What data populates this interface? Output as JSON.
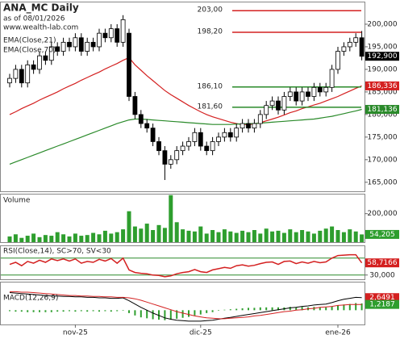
{
  "chart_data": [
    {
      "type": "candlestick",
      "title": "ANA_MC Daily",
      "subtitle": "as of 08/01/2026",
      "source": "www.wealth-lab.com",
      "categories": [
        null,
        null,
        null,
        null,
        null,
        null,
        null,
        null,
        null,
        null,
        null,
        "nov-25",
        null,
        null,
        null,
        null,
        null,
        null,
        null,
        null,
        null,
        null,
        null,
        null,
        null,
        null,
        null,
        null,
        null,
        null,
        null,
        null,
        "dic-25",
        null,
        null,
        null,
        null,
        null,
        null,
        null,
        null,
        null,
        null,
        null,
        null,
        null,
        null,
        null,
        null,
        null,
        null,
        null,
        null,
        null,
        null,
        "ene-26",
        null,
        null,
        null,
        null
      ],
      "open": [
        187,
        188,
        190,
        187,
        191,
        190,
        193,
        192,
        195,
        194,
        196,
        195,
        197,
        194,
        196,
        195,
        198,
        197,
        199,
        196,
        198,
        184,
        180,
        178,
        177,
        174,
        172,
        169,
        170,
        172,
        173,
        174,
        176,
        173,
        172,
        174,
        175,
        176,
        175,
        177,
        178,
        177,
        178,
        180,
        182,
        183,
        181,
        184,
        185,
        183,
        185,
        184,
        186,
        185,
        186,
        190,
        194,
        195,
        196,
        197
      ],
      "high": [
        189,
        191,
        191,
        192,
        192,
        194,
        194,
        196,
        196,
        197,
        197,
        198,
        198,
        197,
        197,
        199,
        199,
        200,
        200,
        202,
        199,
        185,
        181,
        179,
        178,
        175,
        173,
        171,
        173,
        174,
        175,
        177,
        177,
        174,
        175,
        176,
        177,
        177,
        178,
        179,
        179,
        179,
        181,
        183,
        184,
        184,
        185,
        186,
        186,
        186,
        186,
        187,
        187,
        187,
        191,
        195,
        196,
        197,
        198,
        198.5
      ],
      "low": [
        186,
        187,
        186,
        186,
        189,
        189,
        191,
        191,
        193,
        193,
        194,
        194,
        193,
        193,
        194,
        194,
        196,
        196,
        195,
        195,
        183,
        179,
        177,
        176,
        173,
        171,
        165.5,
        168,
        169,
        171,
        172,
        173,
        172,
        171,
        171,
        173,
        174,
        174,
        174,
        176,
        176,
        176,
        177,
        179,
        181,
        180,
        180,
        183,
        182,
        182,
        183,
        183,
        184,
        184,
        185,
        189,
        193,
        194,
        195,
        192
      ],
      "close": [
        188,
        190,
        187,
        191,
        190,
        193,
        192,
        195,
        194,
        196,
        195,
        197,
        194,
        196,
        195,
        198,
        197,
        199,
        196,
        201,
        184,
        180,
        178,
        177,
        174,
        172,
        169,
        170,
        172,
        173,
        174,
        176,
        173,
        172,
        174,
        175,
        176,
        175,
        177,
        178,
        177,
        178,
        180,
        182,
        183,
        181,
        184,
        185,
        183,
        185,
        184,
        186,
        185,
        186,
        190,
        194,
        195,
        196,
        197,
        192.9
      ],
      "series": [
        {
          "name": "EMA(Close,21)",
          "color": "#d42020",
          "values": [
            180.0,
            180.6,
            181.3,
            181.9,
            182.5,
            183.2,
            183.8,
            184.4,
            185.0,
            185.7,
            186.3,
            186.9,
            187.6,
            188.2,
            188.8,
            189.4,
            190.1,
            190.7,
            191.3,
            192.0,
            192.6,
            191.0,
            189.8,
            188.6,
            187.5,
            186.4,
            185.3,
            184.4,
            183.6,
            182.8,
            182.0,
            181.3,
            180.6,
            180.0,
            179.5,
            179.1,
            178.7,
            178.3,
            178.0,
            177.8,
            177.8,
            177.9,
            178.2,
            178.6,
            179.0,
            179.4,
            179.9,
            180.4,
            180.8,
            181.3,
            181.7,
            182.1,
            182.5,
            183.0,
            183.5,
            184.0,
            184.6,
            185.2,
            185.8,
            186.336
          ]
        },
        {
          "name": "EMA(Close,70)",
          "color": "#2a8a2a",
          "values": [
            169.0,
            169.5,
            170.0,
            170.5,
            171.0,
            171.5,
            172.0,
            172.5,
            173.0,
            173.5,
            174.0,
            174.5,
            175.0,
            175.5,
            176.0,
            176.5,
            177.0,
            177.5,
            178.0,
            178.4,
            178.8,
            179.0,
            179.0,
            178.9,
            178.8,
            178.7,
            178.6,
            178.5,
            178.4,
            178.3,
            178.2,
            178.1,
            178.0,
            177.9,
            177.8,
            177.8,
            177.8,
            177.8,
            177.9,
            177.9,
            178.0,
            178.0,
            178.1,
            178.2,
            178.3,
            178.4,
            178.5,
            178.6,
            178.7,
            178.8,
            178.9,
            179.0,
            179.2,
            179.4,
            179.6,
            179.9,
            180.2,
            180.5,
            180.8,
            181.136
          ]
        }
      ],
      "levels": [
        {
          "value": 203,
          "label": "203,00",
          "color": "#d42020"
        },
        {
          "value": 198.2,
          "label": "198,20",
          "color": "#d42020"
        },
        {
          "value": 186.1,
          "label": "186,10",
          "color": "#2a8a2a"
        },
        {
          "value": 181.6,
          "label": "181,60",
          "color": "#2a8a2a"
        }
      ],
      "markers": [
        {
          "value": 192.9,
          "label": "192,900",
          "color": "#000000"
        },
        {
          "value": 186.336,
          "label": "186,336",
          "color": "#d42020"
        },
        {
          "value": 181.136,
          "label": "181,136",
          "color": "#2a8a2a"
        }
      ],
      "ylim": [
        163,
        205
      ],
      "yticks": [
        {
          "value": 165,
          "label": "165,000"
        },
        {
          "value": 170,
          "label": "170,000"
        },
        {
          "value": 175,
          "label": "175,000"
        },
        {
          "value": 180,
          "label": "180,000"
        },
        {
          "value": 185,
          "label": "185,000"
        },
        {
          "value": 190,
          "label": "190,000"
        },
        {
          "value": 195,
          "label": "195,000"
        },
        {
          "value": 200,
          "label": "200,000"
        }
      ]
    },
    {
      "type": "bar",
      "title": "Volume",
      "color": "#2e9e2e",
      "values": [
        40,
        55,
        30,
        45,
        60,
        35,
        50,
        45,
        70,
        55,
        40,
        60,
        45,
        50,
        65,
        55,
        80,
        60,
        70,
        90,
        217,
        110,
        95,
        130,
        85,
        120,
        100,
        330,
        140,
        90,
        80,
        75,
        110,
        60,
        85,
        70,
        90,
        75,
        65,
        80,
        70,
        85,
        60,
        95,
        75,
        80,
        65,
        90,
        70,
        85,
        75,
        60,
        80,
        95,
        110,
        85,
        70,
        90,
        75,
        54.205
      ],
      "markers": [
        {
          "value": 54.205,
          "label": "54,205",
          "color": "#2e9e2e"
        }
      ],
      "ylim": [
        0,
        340
      ],
      "yticks": [
        {
          "value": 200,
          "label": "200,000"
        }
      ]
    },
    {
      "type": "line",
      "title": "RSI(Close,14), SC>70, SV<30",
      "series": [
        {
          "name": "RSI",
          "color": "#d42020",
          "values": [
            55,
            60,
            52,
            62,
            58,
            65,
            60,
            68,
            64,
            68,
            63,
            68,
            58,
            62,
            60,
            67,
            63,
            69,
            58,
            70,
            42,
            36,
            34,
            33,
            30,
            29,
            26,
            28,
            33,
            36,
            38,
            43,
            38,
            36,
            42,
            45,
            48,
            46,
            52,
            54,
            51,
            53,
            57,
            60,
            61,
            55,
            62,
            63,
            57,
            61,
            58,
            62,
            59,
            61,
            70,
            76,
            77,
            78,
            78,
            58.7166
          ]
        }
      ],
      "levels": [
        {
          "value": 70,
          "color": "#2a8a2a"
        },
        {
          "value": 30,
          "color": "#2a8a2a"
        }
      ],
      "markers": [
        {
          "value": 58.7166,
          "label": "58,7166",
          "color": "#d42020"
        }
      ],
      "ylim": [
        20,
        100
      ],
      "yticks": [
        {
          "value": 30,
          "label": "30,000"
        }
      ]
    },
    {
      "type": "macd",
      "title": "MACD(12,26,9)",
      "series": [
        {
          "name": "MACD",
          "color": "#000000",
          "values": [
            3.7,
            3.6,
            3.5,
            3.4,
            3.3,
            3.2,
            3.1,
            3.0,
            3.0,
            2.9,
            2.9,
            2.8,
            2.8,
            2.7,
            2.7,
            2.6,
            2.6,
            2.5,
            2.5,
            2.6,
            2.0,
            1.3,
            0.6,
            0.0,
            -0.6,
            -1.1,
            -1.6,
            -1.9,
            -2.1,
            -2.2,
            -2.3,
            -2.3,
            -2.3,
            -2.2,
            -2.1,
            -1.9,
            -1.7,
            -1.5,
            -1.3,
            -1.1,
            -0.9,
            -0.7,
            -0.5,
            -0.3,
            -0.1,
            0.1,
            0.3,
            0.5,
            0.6,
            0.8,
            0.9,
            1.1,
            1.2,
            1.3,
            1.6,
            2.0,
            2.3,
            2.5,
            2.7,
            2.6491
          ]
        },
        {
          "name": "Signal",
          "color": "#d42020",
          "values": [
            3.9,
            3.9,
            3.8,
            3.8,
            3.7,
            3.6,
            3.5,
            3.4,
            3.3,
            3.2,
            3.1,
            3.1,
            3.0,
            3.0,
            2.9,
            2.9,
            2.8,
            2.8,
            2.7,
            2.7,
            2.6,
            2.4,
            2.1,
            1.7,
            1.3,
            0.9,
            0.5,
            0.1,
            -0.3,
            -0.6,
            -0.9,
            -1.2,
            -1.4,
            -1.6,
            -1.7,
            -1.8,
            -1.8,
            -1.7,
            -1.6,
            -1.5,
            -1.4,
            -1.2,
            -1.1,
            -0.9,
            -0.7,
            -0.5,
            -0.3,
            -0.2,
            0.0,
            0.1,
            0.3,
            0.4,
            0.6,
            0.7,
            0.8,
            1.0,
            1.1,
            1.2,
            1.2,
            1.2187
          ]
        }
      ],
      "histogram": {
        "color": "#2e9e2e",
        "values": [
          -0.2,
          -0.3,
          -0.3,
          -0.4,
          -0.4,
          -0.4,
          -0.4,
          -0.4,
          -0.3,
          -0.3,
          -0.2,
          -0.3,
          -0.2,
          -0.3,
          -0.2,
          -0.3,
          -0.2,
          -0.3,
          -0.2,
          -0.1,
          -0.6,
          -1.1,
          -1.5,
          -1.7,
          -1.9,
          -2.0,
          -2.1,
          -2.0,
          -1.8,
          -1.6,
          -1.4,
          -1.1,
          -0.9,
          -0.6,
          -0.4,
          -0.1,
          0.1,
          0.2,
          0.3,
          0.4,
          0.5,
          0.5,
          0.6,
          0.6,
          0.6,
          0.6,
          0.6,
          0.7,
          0.6,
          0.7,
          0.6,
          0.7,
          0.6,
          0.6,
          0.8,
          1.0,
          1.2,
          1.3,
          1.5,
          1.4304
        ]
      },
      "markers": [
        {
          "value": 2.6491,
          "label": "2,6491",
          "color": "#d42020"
        },
        {
          "value": 1.2187,
          "label": "1,2187",
          "color": "#2e9e2e"
        }
      ],
      "ylim": [
        -3,
        6
      ]
    }
  ]
}
